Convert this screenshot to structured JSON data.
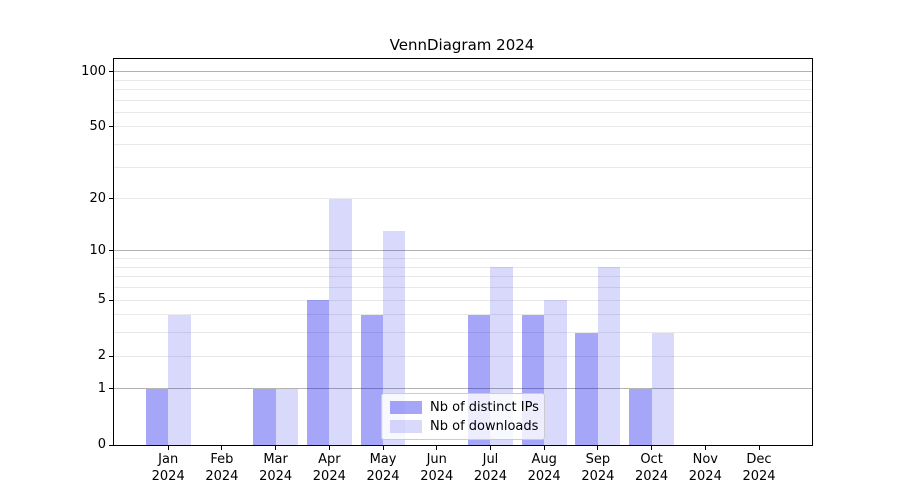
{
  "title": "VennDiagram 2024",
  "chart_data": {
    "type": "bar",
    "title": "VennDiagram 2024",
    "xlabel": "",
    "ylabel": "",
    "scale": "log1p",
    "y_axis_top_value": 117,
    "categories": [
      "Jan",
      "Feb",
      "Mar",
      "Apr",
      "May",
      "Jun",
      "Jul",
      "Aug",
      "Sep",
      "Oct",
      "Nov",
      "Dec"
    ],
    "category_year": "2024",
    "series": [
      {
        "name": "Nb of distinct IPs",
        "color": "rgba(0,0,238,0.35)",
        "color_hex_on_white": "#a7a7f8",
        "values": [
          1,
          0,
          1,
          5,
          4,
          0,
          4,
          4,
          3,
          1,
          0,
          0
        ]
      },
      {
        "name": "Nb of downloads",
        "color": "rgba(0,0,238,0.15)",
        "color_hex_on_white": "#d9d9f8",
        "values": [
          4,
          0,
          1,
          20,
          13,
          0,
          8,
          5,
          8,
          3,
          0,
          0
        ]
      }
    ],
    "y_ticks": [
      0,
      1,
      2,
      5,
      10,
      20,
      50,
      100
    ],
    "y_major_gridlines": [
      1,
      10,
      100
    ],
    "y_minor_gridlines": [
      2,
      3,
      4,
      5,
      6,
      7,
      8,
      9,
      20,
      30,
      40,
      50,
      60,
      70,
      80,
      90
    ],
    "grid": true,
    "legend_position": "lower center inside plot",
    "legend_entries": [
      "Nb of distinct IPs",
      "Nb of downloads"
    ]
  },
  "colors": {
    "background": "#ffffff",
    "axis_spine": "#000000",
    "major_grid": "#b3b3b3",
    "minor_grid": "#e9e9e9",
    "bar_dark": "#a7a7f8",
    "bar_light": "#d9d9f8",
    "legend_border": "#cccccc"
  }
}
